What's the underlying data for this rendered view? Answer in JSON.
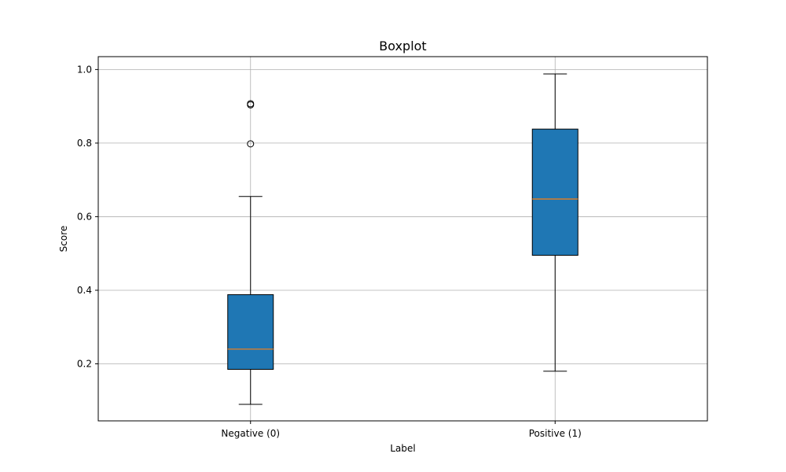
{
  "chart_data": {
    "type": "box",
    "title": "Boxplot",
    "xlabel": "Label",
    "ylabel": "Score",
    "ylim": [
      0.045,
      1.035
    ],
    "yticks": [
      0.2,
      0.4,
      0.6,
      0.8,
      1.0
    ],
    "ytick_labels": [
      "0.2",
      "0.4",
      "0.6",
      "0.8",
      "1.0"
    ],
    "grid": true,
    "categories": [
      "Negative (0)",
      "Positive (1)"
    ],
    "boxes": [
      {
        "name": "Negative (0)",
        "whisker_low": 0.09,
        "q1": 0.185,
        "median": 0.24,
        "q3": 0.388,
        "whisker_high": 0.655,
        "fliers": [
          0.798,
          0.904,
          0.907
        ]
      },
      {
        "name": "Positive (1)",
        "whisker_low": 0.18,
        "q1": 0.495,
        "median": 0.648,
        "q3": 0.838,
        "whisker_high": 0.988,
        "fliers": []
      }
    ],
    "colors": {
      "box_fill": "#1f77b4",
      "median": "#ff7f0e",
      "grid": "#b0b0b0"
    }
  }
}
